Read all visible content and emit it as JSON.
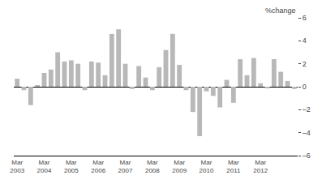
{
  "chart_data": {
    "type": "bar",
    "y_label": "%change",
    "categories": [
      "Mar\n2003",
      null,
      null,
      null,
      "Mar\n2004",
      null,
      null,
      null,
      "Mar\n2005",
      null,
      null,
      null,
      "Mar\n2006",
      null,
      null,
      null,
      "Mar\n2007",
      null,
      null,
      null,
      "Mar\n2008",
      null,
      null,
      null,
      "Mar\n2009",
      null,
      null,
      null,
      "Mar\n2010",
      null,
      null,
      null,
      "Mar\n2011",
      null,
      null,
      null,
      "Mar\n2012",
      null,
      null,
      null,
      null,
      null
    ],
    "values": [
      0.7,
      -0.3,
      -1.6,
      0.1,
      1.2,
      1.5,
      3.0,
      2.2,
      2.3,
      2.0,
      -0.3,
      2.2,
      2.1,
      1.0,
      4.6,
      5.0,
      2.0,
      -0.2,
      1.8,
      0.8,
      -0.3,
      1.7,
      3.2,
      4.6,
      1.9,
      -0.3,
      -2.2,
      -4.3,
      -0.4,
      -0.8,
      -1.8,
      0.6,
      -1.4,
      2.4,
      1.0,
      2.5,
      0.3,
      -0.1,
      2.4,
      1.3,
      0.5,
      -0.2
    ],
    "color": "#b8b8b8",
    "ylim": [
      -6,
      6
    ],
    "yticks": [
      {
        "value": -6,
        "label": "–6"
      },
      {
        "value": -4,
        "label": "–4"
      },
      {
        "value": -2,
        "label": "–2"
      },
      0,
      2,
      4,
      6
    ],
    "grid": false
  }
}
